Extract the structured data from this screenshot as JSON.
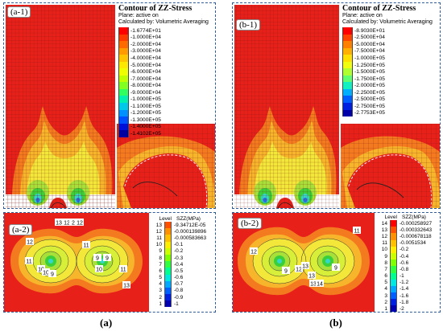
{
  "panels": {
    "a1": {
      "tag": "(a-1)",
      "title": "Contour of ZZ-Stress",
      "subtitle1": "Plane: active on",
      "subtitle2": "Calculated by: Volumetric Averaging",
      "legend": [
        "-1.6774E+01",
        "-1.0000E+04",
        "-2.0000E+04",
        "-3.0000E+04",
        "-4.0000E+04",
        "-5.0000E+04",
        "-6.0000E+04",
        "-7.0000E+04",
        "-8.0000E+04",
        "-9.0000E+04",
        "-1.0000E+05",
        "-1.1000E+05",
        "-1.2000E+05",
        "-1.3000E+05",
        "-1.4000E+05",
        "-1.4102E+05"
      ]
    },
    "b1": {
      "tag": "(b-1)",
      "title": "Contour of ZZ-Stress",
      "subtitle1": "Plane: active on",
      "subtitle2": "Calculated by: Volumetric Averaging",
      "legend": [
        "-8.9030E+01",
        "-2.5000E+04",
        "-5.0000E+04",
        "-7.5000E+04",
        "-1.0000E+05",
        "-1.2500E+05",
        "-1.5000E+05",
        "-1.7500E+05",
        "-2.0000E+05",
        "-2.2500E+05",
        "-2.5000E+05",
        "-2.7500E+05",
        "-2.7753E+05"
      ]
    },
    "a2": {
      "tag": "(a-2)",
      "level_header": "Level",
      "unit_header": "SZZ(MPa)",
      "levels": [
        {
          "level": "13",
          "value": "-9.34712E-05"
        },
        {
          "level": "12",
          "value": "-0.000139896"
        },
        {
          "level": "11",
          "value": "-0.000583663"
        },
        {
          "level": "10",
          "value": "-0.1"
        },
        {
          "level": "9",
          "value": "-0.2"
        },
        {
          "level": "8",
          "value": "-0.3"
        },
        {
          "level": "7",
          "value": "-0.4"
        },
        {
          "level": "6",
          "value": "-0.5"
        },
        {
          "level": "5",
          "value": "-0.6"
        },
        {
          "level": "4",
          "value": "-0.7"
        },
        {
          "level": "3",
          "value": "-0.8"
        },
        {
          "level": "2",
          "value": "-0.9"
        },
        {
          "level": "1",
          "value": "-1"
        }
      ],
      "contour_labels": [
        "13",
        "12",
        "2",
        "12",
        "11",
        "10",
        "10",
        "9",
        "11",
        "9",
        "9",
        "10",
        "12",
        "11",
        "13"
      ]
    },
    "b2": {
      "tag": "(b-2)",
      "level_header": "Level",
      "unit_header": "SZZ(MPa)",
      "levels": [
        {
          "level": "14",
          "value": "-0.000258927"
        },
        {
          "level": "13",
          "value": "-0.000332643"
        },
        {
          "level": "12",
          "value": "-0.000678118"
        },
        {
          "level": "11",
          "value": "-0.0051534"
        },
        {
          "level": "10",
          "value": "-0.2"
        },
        {
          "level": "9",
          "value": "-0.4"
        },
        {
          "level": "8",
          "value": "-0.6"
        },
        {
          "level": "7",
          "value": "-0.8"
        },
        {
          "level": "6",
          "value": "-1"
        },
        {
          "level": "5",
          "value": "-1.2"
        },
        {
          "level": "4",
          "value": "-1.4"
        },
        {
          "level": "3",
          "value": "-1.6"
        },
        {
          "level": "2",
          "value": "-1.8"
        },
        {
          "level": "1",
          "value": "-2"
        }
      ],
      "contour_labels": [
        "12",
        "9",
        "12",
        "13",
        "13",
        "9",
        "13",
        "14",
        "11"
      ]
    }
  },
  "captions": {
    "a": "(a)",
    "b": "(b)"
  },
  "colors": {
    "red": "#e8201a",
    "orange": "#f47a1f",
    "amber": "#f7b52b",
    "yellow": "#f3e83a",
    "lime": "#a8e03a",
    "green": "#3bcf3b",
    "cyan": "#33d6c8",
    "blue": "#2a6ce6",
    "navy": "#1a2fb8",
    "panel_border": "#2e5c9a"
  },
  "legend_colors_a1": [
    "#ff0000",
    "#ff3a00",
    "#ff6a00",
    "#ff9a00",
    "#ffc400",
    "#ffe800",
    "#f0ff00",
    "#c0ff00",
    "#80ff20",
    "#30ff60",
    "#00f0b0",
    "#00c8e8",
    "#0090ff",
    "#0050ff",
    "#0010d8",
    "#0000a0"
  ],
  "legend_colors_b1": [
    "#ff0000",
    "#ff4400",
    "#ff8000",
    "#ffb000",
    "#ffe000",
    "#f0ff10",
    "#b0ff30",
    "#60ff70",
    "#10f0c0",
    "#00b0ff",
    "#0060ff",
    "#0020e0",
    "#0000a8"
  ],
  "legend_colors_levels": [
    "#ff0000",
    "#ff5000",
    "#ff9000",
    "#ffc000",
    "#ffee00",
    "#ccff00",
    "#80ff00",
    "#30ff40",
    "#00ff90",
    "#00e8e0",
    "#00a8ff",
    "#0060ff",
    "#0020e0",
    "#0000b0"
  ]
}
